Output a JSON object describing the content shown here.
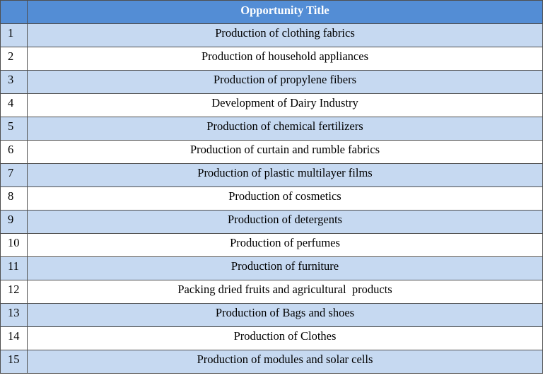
{
  "table": {
    "header": {
      "number": "",
      "title": "Opportunity Title"
    },
    "rows": [
      {
        "number": "1",
        "title": "Production of clothing fabrics"
      },
      {
        "number": "2",
        "title": "Production of household appliances"
      },
      {
        "number": "3",
        "title": "Production of propylene fibers"
      },
      {
        "number": "4",
        "title": "Development of Dairy Industry"
      },
      {
        "number": "5",
        "title": "Production of chemical fertilizers"
      },
      {
        "number": "6",
        "title": "Production of curtain and rumble fabrics"
      },
      {
        "number": "7",
        "title": "Production of plastic multilayer films"
      },
      {
        "number": "8",
        "title": "Production of cosmetics"
      },
      {
        "number": "9",
        "title": "Production of detergents"
      },
      {
        "number": "10",
        "title": "Production of perfumes"
      },
      {
        "number": "11",
        "title": "Production of furniture"
      },
      {
        "number": "12",
        "title": "Packing dried fruits and agricultural  products"
      },
      {
        "number": "13",
        "title": "Production of Bags and shoes"
      },
      {
        "number": "14",
        "title": "Production of Clothes"
      },
      {
        "number": "15",
        "title": "Production of modules and solar cells"
      }
    ]
  },
  "colors": {
    "header_background": "#538dd5",
    "header_text": "#ffffff",
    "stripe_background": "#c6d9f1",
    "border": "#4f4f4f"
  }
}
